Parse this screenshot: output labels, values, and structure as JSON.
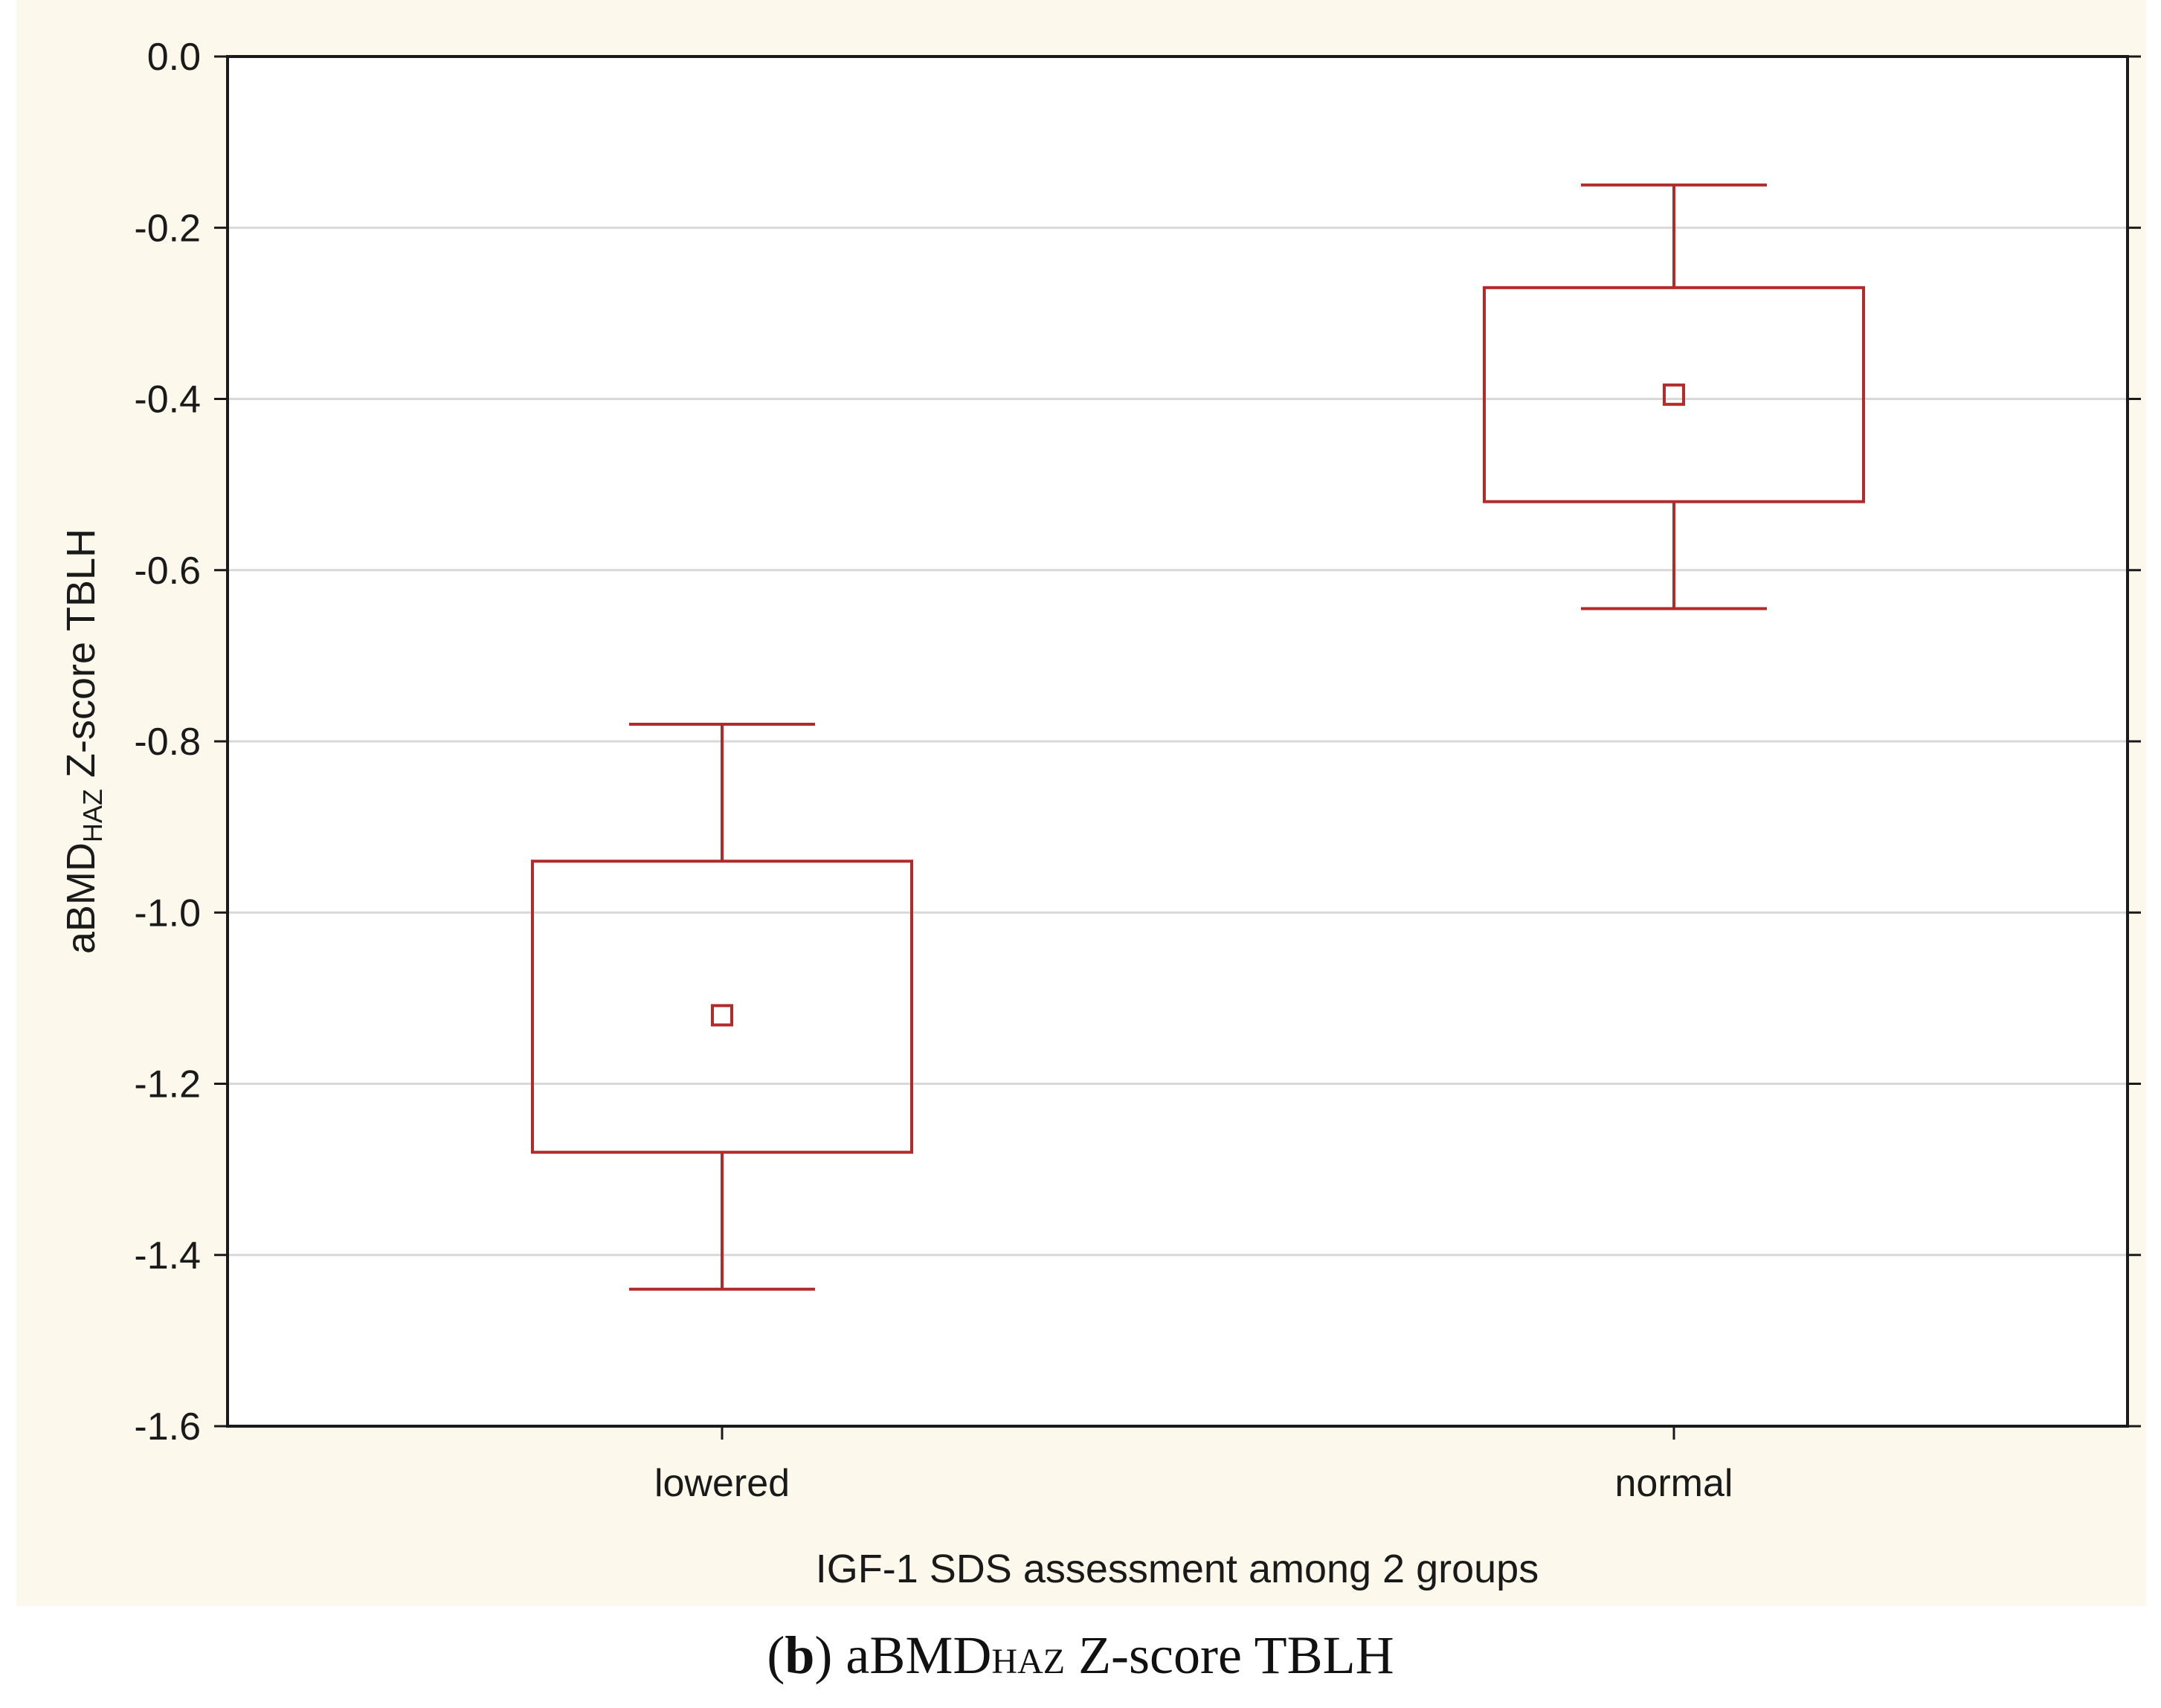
{
  "chart_data": {
    "type": "box",
    "xlabel": "IGF-1 SDS assessment among 2 groups",
    "ylabel_parts": {
      "prefix": "aBMD",
      "subscript": "HAZ",
      "suffix": " Z-score TBLH"
    },
    "ylim": [
      -1.6,
      0.0
    ],
    "yticks": [
      "0.0",
      "-0.2",
      "-0.4",
      "-0.6",
      "-0.8",
      "-1.0",
      "-1.2",
      "-1.4",
      "-1.6"
    ],
    "ytick_values": [
      0.0,
      -0.2,
      -0.4,
      -0.6,
      -0.8,
      -1.0,
      -1.2,
      -1.4,
      -1.6
    ],
    "grid": "horizontal",
    "categories": [
      "lowered",
      "normal"
    ],
    "groups": [
      {
        "name": "lowered",
        "mean": -1.12,
        "box_low": -1.28,
        "box_high": -0.94,
        "whisker_low": -1.44,
        "whisker_high": -0.78
      },
      {
        "name": "normal",
        "mean": -0.395,
        "box_low": -0.52,
        "box_high": -0.27,
        "whisker_low": -0.645,
        "whisker_high": -0.15
      }
    ],
    "colors": {
      "box": "#b22a2a",
      "grid": "#d8d8d8",
      "axis": "#1a1a1a"
    }
  },
  "caption": {
    "open": "(",
    "letter": "b",
    "close": ") ",
    "main": "aBMD",
    "sub": "HAZ",
    "rest": " Z-score TBLH"
  }
}
